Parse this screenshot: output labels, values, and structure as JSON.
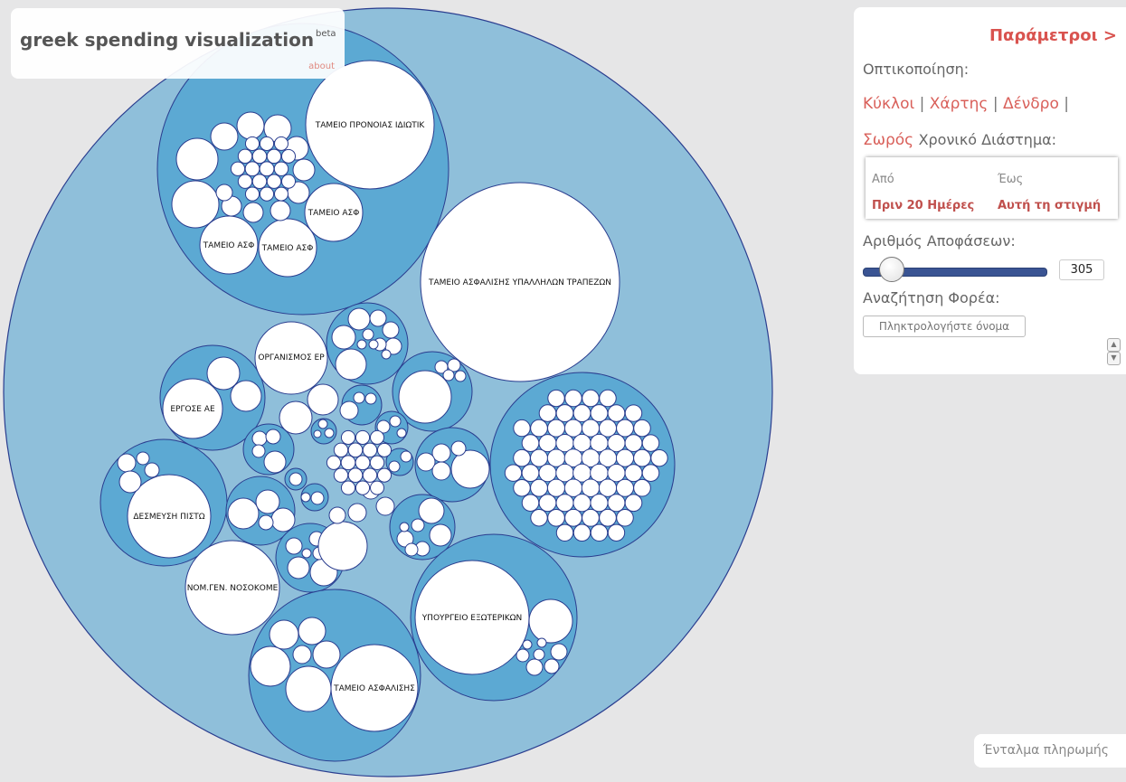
{
  "header": {
    "title": "greek spending visualization",
    "badge": "beta",
    "about_link": "about"
  },
  "colors": {
    "outer_circle": "#8fbfda",
    "group_circle": "#5ca9d3",
    "leaf_circle": "#ffffff",
    "stroke": "#2a3d8f",
    "accent": "#d9534f",
    "background": "#e6e6e7"
  },
  "bubbles": {
    "labels": [
      "ΤΑΜΕΙΟ ΠΡΟΝΟΙΑΣ ΙΔΙΩΤΙΚ",
      "ΤΑΜΕΙΟ ΑΣΦ",
      "ΤΑΜΕΙΟ ΑΣΦ",
      "ΤΑΜΕΙΟ ΑΣΦ",
      "ΤΑΜΕΙΟ ΑΣΦΑΛΙΣΗΣ ΥΠΑΛΛΗΛΩΝ ΤΡΑΠΕΖΩΝ",
      "ΟΡΓΑΝΙΣΜΟΣ ΕΡ",
      "ΕΡΓΟΣΕ ΑΕ",
      "ΔΕΣΜΕΥΣΗ ΠΙΣΤΩ",
      "ΝΟΜ.ΓΕΝ. ΝΟΣΟΚΟΜΕ",
      "ΥΠΟΥΡΓΕΙΟ ΕΞΩΤΕΡΙΚΩΝ",
      "ΤΑΜΕΙΟ ΑΣΦΑΛΙΣΗΣ"
    ]
  },
  "panel": {
    "title": "Παράμετροι >",
    "visualization_label": "Οπτικοποίηση:",
    "views": [
      "Κύκλοι",
      "Χάρτης",
      "Δένδρο",
      "Σωρός"
    ],
    "separator": "|",
    "period_label": "Χρονικό Διάστημα:",
    "from_label": "Από",
    "to_label": "Έως",
    "from_value": "Πριν 20 Ημέρες",
    "to_value": "Αυτή τη στιγμή",
    "decisions_label": "Αριθμός Αποφάσεων:",
    "decisions_count": "305",
    "decisions_slider_fraction": 0.16,
    "search_label": "Αναζήτηση Φορέα:",
    "search_placeholder": "Πληκτρολογήστε όνομα",
    "scroll_up_icon": "chevron-up-icon",
    "scroll_down_icon": "chevron-down-icon"
  },
  "footer": {
    "payment_label": "Ένταλμα πληρωμής"
  }
}
